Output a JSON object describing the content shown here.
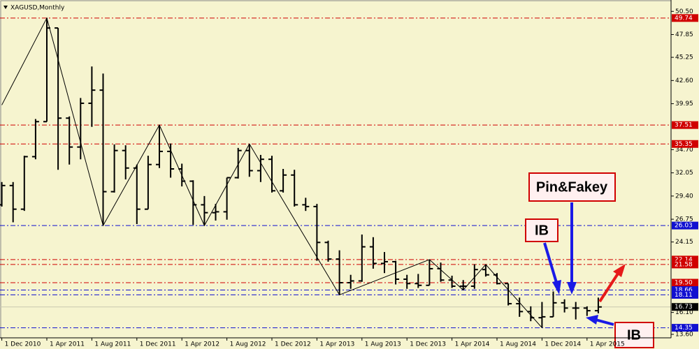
{
  "chart_data": {
    "type": "ohlc",
    "title": "XAGUSD,Monthly",
    "categories": [
      "1 Dec 2010",
      null,
      null,
      null,
      "1 Apr 2011",
      null,
      null,
      null,
      "1 Aug 2011",
      null,
      null,
      null,
      "1 Dec 2011",
      null,
      null,
      null,
      "1 Apr 2012",
      null,
      null,
      null,
      "1 Aug 2012",
      null,
      null,
      null,
      "1 Dec 2012",
      null,
      null,
      null,
      "1 Apr 2013",
      null,
      null,
      null,
      "1 Aug 2013",
      null,
      null,
      null,
      "1 Dec 2013",
      null,
      null,
      null,
      "1 Apr 2014",
      null,
      null,
      null,
      "1 Aug 2014",
      null,
      null,
      null,
      "1 Dec 2014",
      null,
      null,
      null,
      "1 Apr 2015",
      null
    ],
    "open": [
      28.4,
      30.6,
      27.9,
      33.9,
      37.9,
      48.6,
      38.3,
      35.0,
      40.0,
      41.5,
      29.9,
      34.6,
      32.6,
      27.9,
      33.0,
      34.5,
      32.5,
      31.1,
      28.4,
      27.5,
      27.6,
      31.5,
      34.6,
      32.3,
      33.6,
      30.0,
      31.8,
      28.4,
      28.2,
      24.1,
      22.2,
      19.5,
      19.7,
      23.6,
      21.7,
      21.9,
      19.9,
      19.4,
      19.2,
      21.1,
      19.8,
      19.1,
      19.1,
      21.0,
      20.4,
      19.4,
      17.1,
      16.2,
      15.5,
      15.6,
      17.2,
      16.6,
      16.6,
      16.3
    ],
    "high": [
      31.0,
      31.0,
      34.0,
      38.2,
      49.74,
      48.6,
      38.5,
      40.6,
      44.2,
      43.4,
      35.3,
      35.2,
      33.0,
      34.0,
      37.51,
      35.4,
      33.1,
      31.2,
      29.4,
      28.5,
      31.5,
      34.9,
      35.35,
      34.1,
      34.0,
      32.5,
      32.4,
      29.2,
      28.5,
      24.3,
      23.2,
      20.4,
      25.0,
      24.7,
      23.0,
      22.0,
      20.4,
      20.5,
      22.14,
      21.8,
      20.3,
      19.8,
      21.6,
      21.58,
      20.6,
      19.4,
      17.8,
      16.8,
      17.3,
      18.5,
      17.6,
      17.3,
      16.8,
      17.8
    ],
    "low": [
      28.2,
      26.4,
      27.7,
      33.6,
      37.9,
      32.4,
      33.0,
      33.6,
      37.3,
      26.03,
      29.8,
      31.3,
      26.2,
      27.9,
      32.6,
      31.5,
      30.5,
      26.1,
      26.03,
      26.6,
      26.7,
      31.4,
      31.6,
      31.0,
      29.8,
      29.8,
      28.2,
      27.7,
      22.0,
      21.9,
      18.11,
      18.8,
      19.6,
      21.1,
      20.6,
      19.3,
      18.8,
      18.9,
      19.2,
      19.6,
      18.9,
      18.66,
      18.8,
      20.2,
      19.3,
      16.9,
      15.6,
      15.1,
      14.35,
      15.6,
      16.1,
      15.3,
      15.7,
      16.0
    ],
    "close": [
      30.6,
      27.9,
      33.9,
      37.9,
      48.6,
      38.3,
      35.0,
      40.0,
      41.5,
      29.9,
      34.6,
      32.6,
      27.9,
      33.0,
      34.5,
      32.5,
      31.1,
      28.4,
      27.5,
      27.6,
      31.5,
      34.6,
      32.3,
      33.6,
      30.0,
      31.8,
      28.4,
      28.2,
      24.1,
      22.2,
      19.5,
      19.7,
      23.6,
      21.7,
      21.9,
      19.9,
      19.4,
      19.2,
      21.1,
      19.8,
      19.1,
      19.1,
      21.0,
      20.4,
      19.4,
      17.1,
      16.2,
      15.5,
      15.6,
      17.2,
      16.6,
      16.6,
      16.3,
      16.73
    ],
    "color": "#000000",
    "ylim": [
      13.2,
      51.4
    ],
    "yticks": [
      {
        "value": 50.5,
        "label": "50.50"
      },
      {
        "value": 47.85,
        "label": "47.85"
      },
      {
        "value": 45.25,
        "label": "45.25"
      },
      {
        "value": 42.6,
        "label": "42.60"
      },
      {
        "value": 39.95,
        "label": "39.95"
      },
      {
        "value": 34.7,
        "label": "34.70"
      },
      {
        "value": 32.05,
        "label": "32.05"
      },
      {
        "value": 29.4,
        "label": "29.40"
      },
      {
        "value": 26.75,
        "label": "26.75"
      },
      {
        "value": 24.15,
        "label": "24.15"
      },
      {
        "value": 16.1,
        "label": "16.10"
      },
      {
        "value": 13.6,
        "label": "13.60"
      }
    ],
    "levels": [
      {
        "value": 49.74,
        "label": "49.74",
        "color": "#d00000"
      },
      {
        "value": 37.51,
        "label": "37.51",
        "color": "#d00000"
      },
      {
        "value": 35.35,
        "label": "35.35",
        "color": "#d00000"
      },
      {
        "value": 26.03,
        "label": "26.03",
        "color": "#1010d0"
      },
      {
        "value": 22.14,
        "label": "22.14",
        "color": "#d00000"
      },
      {
        "value": 21.58,
        "label": "21.58",
        "color": "#d00000"
      },
      {
        "value": 19.5,
        "label": "19.50",
        "color": "#d00000"
      },
      {
        "value": 18.66,
        "label": "18.66",
        "color": "#1010d0"
      },
      {
        "value": 18.11,
        "label": "18.11",
        "color": "#1010d0"
      },
      {
        "value": 14.35,
        "label": "14.35",
        "color": "#1010d0"
      }
    ],
    "zigzag": {
      "x": [
        0,
        4,
        9,
        14,
        18,
        22,
        30,
        38,
        41,
        43,
        48
      ],
      "values": [
        39.8,
        49.74,
        26.03,
        37.51,
        26.03,
        35.35,
        18.11,
        22.14,
        18.66,
        21.58,
        14.35
      ]
    },
    "annotations": [
      {
        "text": "IB"
      },
      {
        "text": "Pin&Fakey"
      },
      {
        "text": "IB"
      }
    ]
  }
}
